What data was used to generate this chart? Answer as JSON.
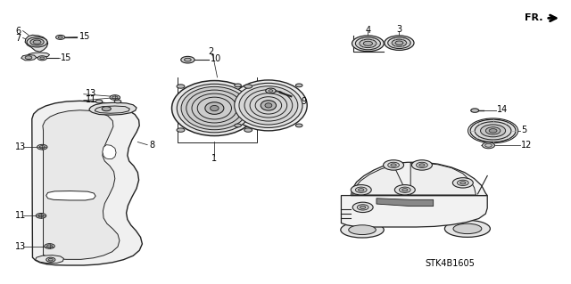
{
  "background_color": "#ffffff",
  "watermark": "STK4B1605",
  "line_color": "#333333"
}
